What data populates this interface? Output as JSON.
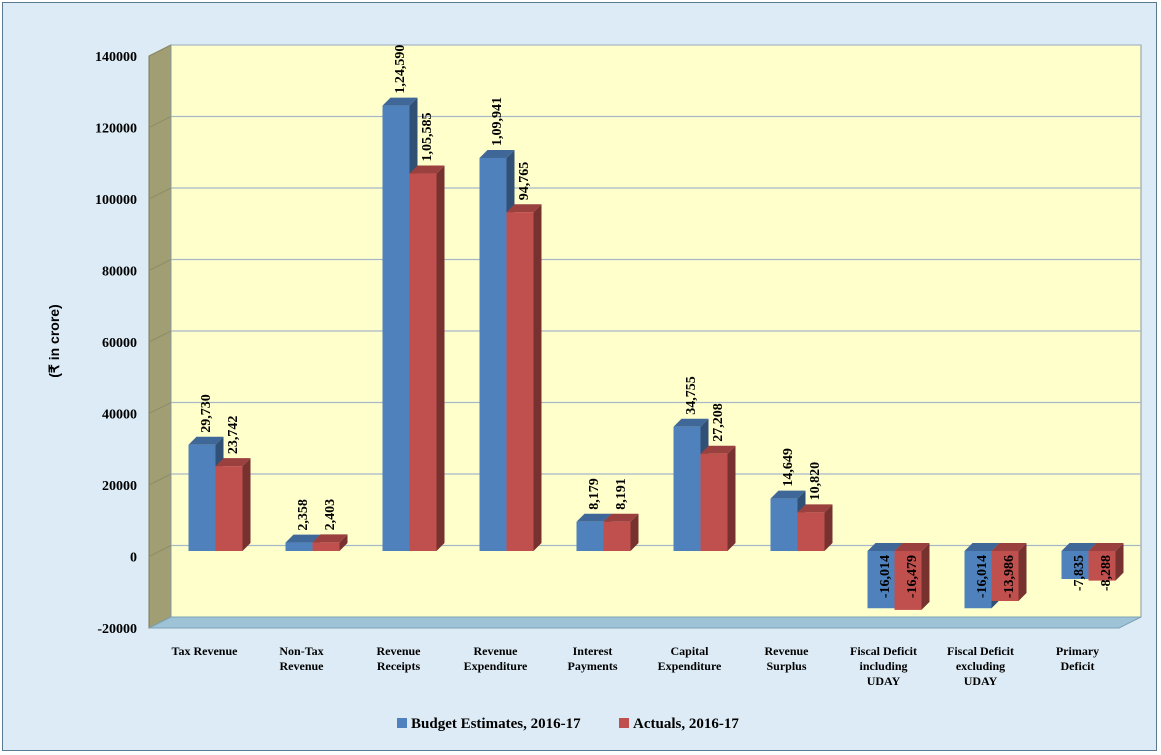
{
  "chart_data": {
    "type": "bar",
    "title": "",
    "ylabel": "(₹ in crore)",
    "xlabel": "",
    "ylim": [
      -20000,
      140000
    ],
    "yticks": [
      "-20000",
      "0",
      "20000",
      "40000",
      "60000",
      "80000",
      "100000",
      "120000",
      "140000"
    ],
    "grid": true,
    "legend_position": "bottom",
    "categories": [
      "Tax Revenue",
      "Non-Tax Revenue",
      "Revenue Receipts",
      "Revenue Expenditure",
      "Interest Payments",
      "Capital Expenditure",
      "Revenue Surplus",
      "Fiscal Deficit including UDAY",
      "Fiscal Deficit excluding UDAY",
      "Primary Deficit"
    ],
    "category_lines": [
      [
        "Tax Revenue"
      ],
      [
        "Non-Tax",
        "Revenue"
      ],
      [
        "Revenue",
        "Receipts"
      ],
      [
        "Revenue",
        "Expenditure"
      ],
      [
        "Interest",
        "Payments"
      ],
      [
        "Capital",
        "Expenditure"
      ],
      [
        "Revenue",
        "Surplus"
      ],
      [
        "Fiscal Deficit",
        "including",
        "UDAY"
      ],
      [
        "Fiscal Deficit",
        "excluding",
        "UDAY"
      ],
      [
        "Primary",
        "Deficit"
      ]
    ],
    "series": [
      {
        "name": "Budget Estimates, 2016-17",
        "color": "#4f81bd",
        "values": [
          29730,
          2358,
          124590,
          109941,
          8179,
          34755,
          14649,
          -16014,
          -16014,
          -7835
        ],
        "labels": [
          "29,730",
          "2,358",
          "1,24,590",
          "1,09,941",
          "8,179",
          "34,755",
          "14,649",
          "-16,014",
          "-16,014",
          "-7,835"
        ]
      },
      {
        "name": "Actuals, 2016-17",
        "color": "#c0504d",
        "values": [
          23742,
          2403,
          105585,
          94765,
          8191,
          27208,
          10820,
          -16479,
          -13986,
          -8288
        ],
        "labels": [
          "23,742",
          "2,403",
          "1,05,585",
          "94,765",
          "8,191",
          "27,208",
          "10,820",
          "-16,479",
          "-13,986",
          "-8,288"
        ]
      }
    ],
    "colors": {
      "plot_area": "#ffffcc",
      "side_wall": "#a09e72",
      "floor": "#9ec3d6",
      "gridline": "#a6b8c8"
    }
  }
}
